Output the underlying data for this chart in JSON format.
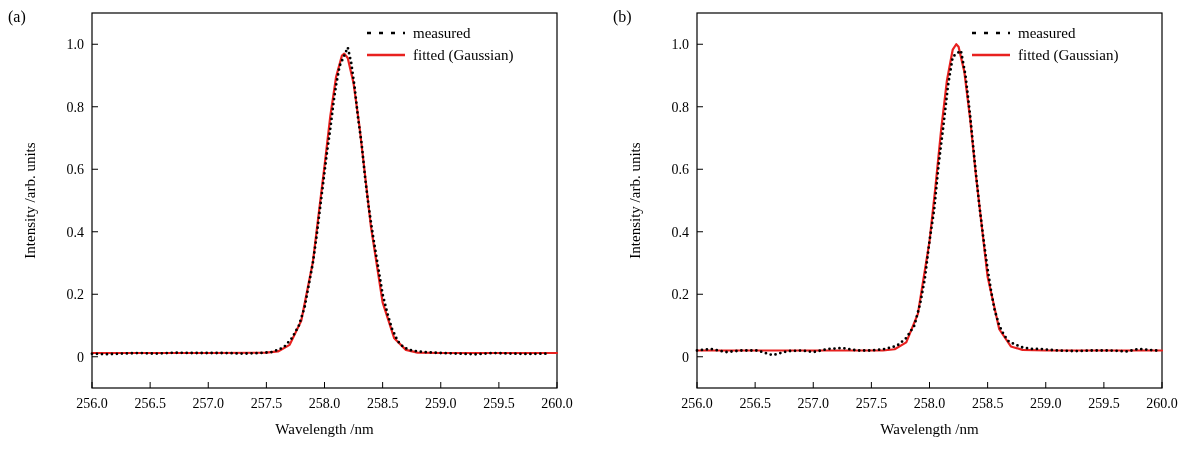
{
  "chart_data": [
    {
      "type": "line",
      "title": "(a)",
      "xlabel": "Wavelength /nm",
      "ylabel": "Intensity /arb. units",
      "xlim": [
        256,
        260
      ],
      "ylim": [
        -0.1,
        1.1
      ],
      "xticks": [
        {
          "value": 256,
          "label": "256.0"
        },
        {
          "value": 256.5,
          "label": "256.5"
        },
        {
          "value": 257,
          "label": "257.0"
        },
        {
          "value": 257.5,
          "label": "257.5"
        },
        {
          "value": 258,
          "label": "258.0"
        },
        {
          "value": 258.5,
          "label": "258.5"
        },
        {
          "value": 259,
          "label": "259.0"
        },
        {
          "value": 259.5,
          "label": "259.5"
        },
        {
          "value": 260,
          "label": "260.0"
        }
      ],
      "yticks": [
        0,
        0.2,
        0.4,
        0.6,
        0.8,
        {
          "value": 1,
          "label": "1.0"
        }
      ],
      "legend": "top right",
      "series": [
        {
          "name": "measured",
          "line_style": "dotted",
          "color": "#000000",
          "x": [
            256.0,
            256.12,
            256.25,
            256.4,
            256.55,
            256.7,
            256.85,
            257.0,
            257.15,
            257.3,
            257.45,
            257.55,
            257.65,
            257.72,
            257.78,
            257.83,
            257.87,
            257.9,
            257.93,
            257.96,
            257.99,
            258.02,
            258.05,
            258.08,
            258.1,
            258.13,
            258.2,
            258.23,
            258.26,
            258.29,
            258.32,
            258.35,
            258.38,
            258.42,
            258.46,
            258.5,
            258.54,
            258.58,
            258.63,
            258.68,
            258.75,
            258.85,
            259.0,
            259.15,
            259.3,
            259.45,
            259.6,
            259.75,
            259.9
          ],
          "values": [
            0.01,
            0.008,
            0.01,
            0.012,
            0.01,
            0.013,
            0.012,
            0.012,
            0.012,
            0.01,
            0.012,
            0.015,
            0.03,
            0.06,
            0.1,
            0.16,
            0.24,
            0.3,
            0.38,
            0.47,
            0.56,
            0.65,
            0.73,
            0.82,
            0.87,
            0.93,
            0.99,
            0.94,
            0.86,
            0.76,
            0.68,
            0.57,
            0.48,
            0.38,
            0.29,
            0.2,
            0.14,
            0.09,
            0.05,
            0.03,
            0.02,
            0.015,
            0.012,
            0.01,
            0.008,
            0.012,
            0.01,
            0.009,
            0.01
          ]
        },
        {
          "name": "fitted (Gaussian)",
          "type": "line",
          "color": "#e8211f",
          "x": [
            256,
            257,
            257.5,
            257.6,
            257.7,
            257.8,
            257.9,
            258.0,
            258.05,
            258.1,
            258.15,
            258.17,
            258.2,
            258.25,
            258.3,
            258.4,
            258.5,
            258.6,
            258.7,
            258.8,
            259,
            260
          ],
          "values": [
            0.012,
            0.012,
            0.013,
            0.017,
            0.038,
            0.115,
            0.303,
            0.61,
            0.77,
            0.896,
            0.964,
            0.97,
            0.956,
            0.875,
            0.739,
            0.415,
            0.174,
            0.059,
            0.022,
            0.013,
            0.012,
            0.012
          ]
        }
      ]
    },
    {
      "type": "line",
      "title": "(b)",
      "xlabel": "Wavelength /nm",
      "ylabel": "Intensity /arb. units",
      "xlim": [
        256,
        260
      ],
      "ylim": [
        -0.1,
        1.1
      ],
      "xticks": [
        {
          "value": 256,
          "label": "256.0"
        },
        {
          "value": 256.5,
          "label": "256.5"
        },
        {
          "value": 257,
          "label": "257.0"
        },
        {
          "value": 257.5,
          "label": "257.5"
        },
        {
          "value": 258,
          "label": "258.0"
        },
        {
          "value": 258.5,
          "label": "258.5"
        },
        {
          "value": 259,
          "label": "259.0"
        },
        {
          "value": 259.5,
          "label": "259.5"
        },
        {
          "value": 260,
          "label": "260.0"
        }
      ],
      "yticks": [
        0,
        0.2,
        0.4,
        0.6,
        0.8,
        {
          "value": 1,
          "label": "1.0"
        }
      ],
      "legend": "top right",
      "series": [
        {
          "name": "measured",
          "line_style": "dotted",
          "color": "#000000",
          "x": [
            256.0,
            256.12,
            256.25,
            256.38,
            256.52,
            256.65,
            256.78,
            256.9,
            257.0,
            257.13,
            257.25,
            257.38,
            257.5,
            257.62,
            257.72,
            257.8,
            257.87,
            257.92,
            257.96,
            258.0,
            258.04,
            258.08,
            258.12,
            258.16,
            258.2,
            258.27,
            258.31,
            258.35,
            258.39,
            258.43,
            258.47,
            258.5,
            258.53,
            258.56,
            258.6,
            258.64,
            258.68,
            258.73,
            258.8,
            258.88,
            258.95,
            259.1,
            259.25,
            259.4,
            259.55,
            259.7,
            259.8,
            259.95
          ],
          "values": [
            0.02,
            0.025,
            0.015,
            0.02,
            0.02,
            0.005,
            0.018,
            0.02,
            0.015,
            0.025,
            0.028,
            0.02,
            0.02,
            0.025,
            0.035,
            0.06,
            0.1,
            0.17,
            0.25,
            0.37,
            0.47,
            0.62,
            0.74,
            0.87,
            0.96,
            0.98,
            0.9,
            0.77,
            0.62,
            0.48,
            0.36,
            0.28,
            0.21,
            0.15,
            0.1,
            0.07,
            0.05,
            0.04,
            0.03,
            0.025,
            0.025,
            0.02,
            0.018,
            0.02,
            0.02,
            0.017,
            0.025,
            0.02
          ]
        },
        {
          "name": "fitted (Gaussian)",
          "type": "line",
          "color": "#e8211f",
          "x": [
            256,
            257,
            257.5,
            257.6,
            257.7,
            257.8,
            257.9,
            258.0,
            258.05,
            258.1,
            258.15,
            258.2,
            258.23,
            258.25,
            258.3,
            258.35,
            258.4,
            258.5,
            258.6,
            258.7,
            258.8,
            259,
            260
          ],
          "values": [
            0.02,
            0.02,
            0.02,
            0.02,
            0.024,
            0.046,
            0.137,
            0.369,
            0.54,
            0.725,
            0.884,
            0.983,
            1.0,
            0.992,
            0.911,
            0.76,
            0.578,
            0.256,
            0.088,
            0.033,
            0.022,
            0.02,
            0.02
          ]
        }
      ]
    }
  ]
}
